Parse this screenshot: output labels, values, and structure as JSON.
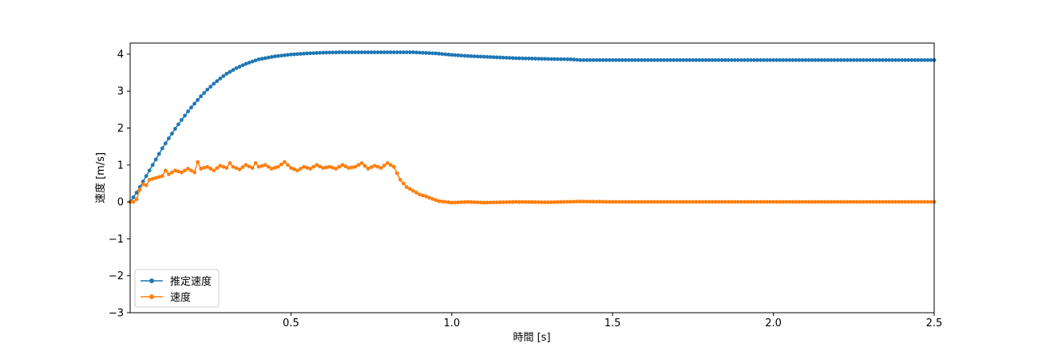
{
  "chart_data": {
    "type": "line",
    "xlabel": "時間 [s]",
    "ylabel": "速度 [m/s]",
    "xlim": [
      0,
      2.5
    ],
    "ylim": [
      -3,
      4.3
    ],
    "xticks": [
      0.5,
      1.0,
      1.5,
      2.0,
      2.5
    ],
    "xtick_labels": [
      "0.5",
      "1.0",
      "1.5",
      "2.0",
      "2.5"
    ],
    "yticks": [
      -3,
      -2,
      -1,
      0,
      1,
      2,
      3,
      4
    ],
    "ytick_labels": [
      "−3",
      "−2",
      "−1",
      "0",
      "1",
      "2",
      "3",
      "4"
    ],
    "grid": false,
    "legend_position": "lower-left",
    "series": [
      {
        "name": "推定速度",
        "color": "#1f77b4",
        "marker": "circle",
        "points": [
          [
            0.0,
            0.0
          ],
          [
            0.02,
            0.25
          ],
          [
            0.04,
            0.55
          ],
          [
            0.06,
            0.85
          ],
          [
            0.08,
            1.15
          ],
          [
            0.1,
            1.45
          ],
          [
            0.12,
            1.72
          ],
          [
            0.14,
            1.98
          ],
          [
            0.16,
            2.22
          ],
          [
            0.18,
            2.45
          ],
          [
            0.2,
            2.66
          ],
          [
            0.22,
            2.86
          ],
          [
            0.24,
            3.04
          ],
          [
            0.26,
            3.2
          ],
          [
            0.28,
            3.34
          ],
          [
            0.3,
            3.47
          ],
          [
            0.33,
            3.62
          ],
          [
            0.36,
            3.74
          ],
          [
            0.4,
            3.86
          ],
          [
            0.45,
            3.94
          ],
          [
            0.5,
            3.99
          ],
          [
            0.55,
            4.02
          ],
          [
            0.6,
            4.04
          ],
          [
            0.65,
            4.05
          ],
          [
            0.7,
            4.05
          ],
          [
            0.8,
            4.05
          ],
          [
            0.88,
            4.05
          ],
          [
            0.95,
            4.02
          ],
          [
            1.0,
            3.98
          ],
          [
            1.05,
            3.95
          ],
          [
            1.1,
            3.93
          ],
          [
            1.15,
            3.91
          ],
          [
            1.2,
            3.89
          ],
          [
            1.25,
            3.88
          ],
          [
            1.3,
            3.87
          ],
          [
            1.37,
            3.86
          ],
          [
            1.4,
            3.84
          ],
          [
            1.5,
            3.84
          ],
          [
            2.0,
            3.84
          ],
          [
            2.5,
            3.84
          ]
        ]
      },
      {
        "name": "速度",
        "color": "#ff7f0e",
        "marker": "circle",
        "points": [
          [
            0.0,
            0.0
          ],
          [
            0.015,
            0.0
          ],
          [
            0.025,
            0.15
          ],
          [
            0.035,
            0.5
          ],
          [
            0.05,
            0.45
          ],
          [
            0.06,
            0.6
          ],
          [
            0.08,
            0.65
          ],
          [
            0.1,
            0.7
          ],
          [
            0.11,
            0.85
          ],
          [
            0.12,
            0.75
          ],
          [
            0.14,
            0.85
          ],
          [
            0.16,
            0.8
          ],
          [
            0.18,
            0.9
          ],
          [
            0.2,
            0.8
          ],
          [
            0.21,
            1.08
          ],
          [
            0.22,
            0.9
          ],
          [
            0.24,
            0.95
          ],
          [
            0.26,
            0.85
          ],
          [
            0.28,
            0.98
          ],
          [
            0.3,
            0.92
          ],
          [
            0.31,
            1.05
          ],
          [
            0.32,
            0.95
          ],
          [
            0.34,
            0.88
          ],
          [
            0.36,
            1.0
          ],
          [
            0.38,
            0.92
          ],
          [
            0.39,
            1.05
          ],
          [
            0.4,
            0.95
          ],
          [
            0.42,
            1.0
          ],
          [
            0.44,
            0.9
          ],
          [
            0.46,
            0.95
          ],
          [
            0.48,
            1.08
          ],
          [
            0.5,
            0.92
          ],
          [
            0.52,
            0.85
          ],
          [
            0.54,
            0.95
          ],
          [
            0.56,
            0.9
          ],
          [
            0.58,
            1.0
          ],
          [
            0.6,
            0.92
          ],
          [
            0.62,
            0.95
          ],
          [
            0.64,
            0.9
          ],
          [
            0.66,
            1.0
          ],
          [
            0.68,
            0.92
          ],
          [
            0.7,
            0.95
          ],
          [
            0.72,
            1.05
          ],
          [
            0.74,
            0.9
          ],
          [
            0.76,
            0.98
          ],
          [
            0.78,
            0.92
          ],
          [
            0.8,
            1.05
          ],
          [
            0.82,
            0.95
          ],
          [
            0.84,
            0.6
          ],
          [
            0.86,
            0.4
          ],
          [
            0.88,
            0.3
          ],
          [
            0.9,
            0.2
          ],
          [
            0.92,
            0.15
          ],
          [
            0.94,
            0.08
          ],
          [
            0.96,
            0.02
          ],
          [
            0.98,
            0.0
          ],
          [
            1.0,
            -0.02
          ],
          [
            1.05,
            0.0
          ],
          [
            1.1,
            -0.02
          ],
          [
            1.2,
            0.0
          ],
          [
            1.3,
            -0.01
          ],
          [
            1.4,
            0.01
          ],
          [
            1.5,
            0.0
          ],
          [
            1.7,
            0.0
          ],
          [
            2.0,
            0.0
          ],
          [
            2.25,
            0.0
          ],
          [
            2.5,
            0.0
          ]
        ]
      }
    ]
  }
}
